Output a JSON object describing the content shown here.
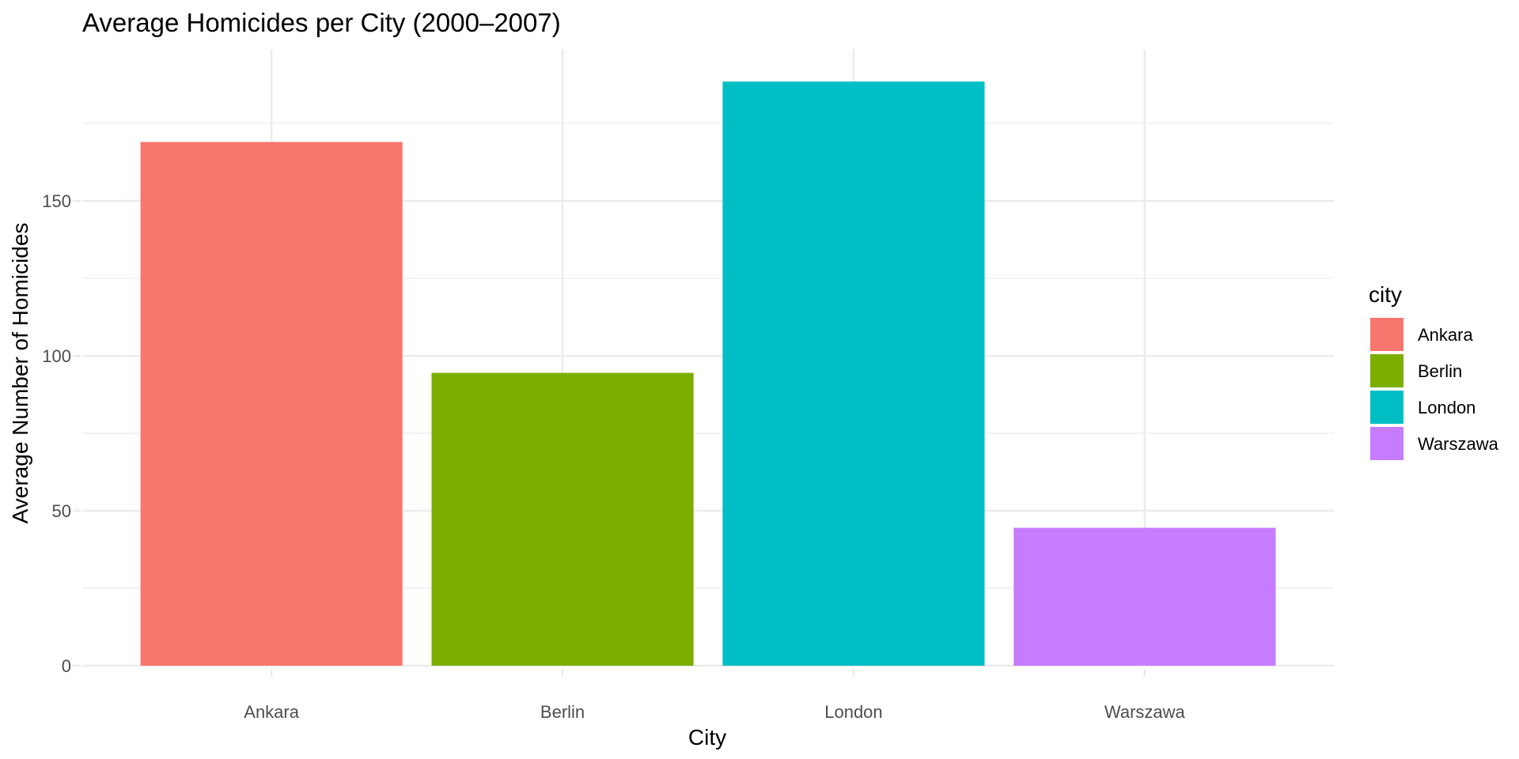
{
  "chart_data": {
    "type": "bar",
    "title": "Average Homicides per City (2000–2007)",
    "xlabel": "City",
    "ylabel": "Average Number of Homicides",
    "categories": [
      "Ankara",
      "Berlin",
      "London",
      "Warszawa"
    ],
    "values": [
      169,
      94.5,
      188.5,
      44.5
    ],
    "colors": [
      "#F8766D",
      "#7CAE00",
      "#00BFC4",
      "#C77CFF"
    ],
    "ylim": [
      0,
      199
    ],
    "y_ticks": [
      0,
      50,
      100,
      150
    ],
    "grid": true,
    "legend": {
      "title": "city",
      "position": "right",
      "entries": [
        "Ankara",
        "Berlin",
        "London",
        "Warszawa"
      ]
    }
  }
}
